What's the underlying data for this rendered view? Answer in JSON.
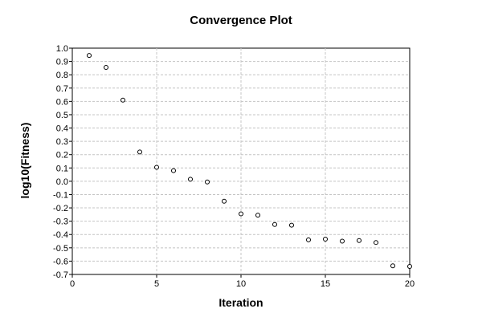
{
  "chart_data": {
    "type": "scatter",
    "title": "Convergence Plot",
    "xlabel": "Iteration",
    "ylabel": "log10(Fitness)",
    "xlim": [
      0,
      20
    ],
    "ylim": [
      -0.7,
      1.0
    ],
    "x_ticks": [
      0,
      5,
      10,
      15,
      20
    ],
    "y_ticks": [
      1.0,
      0.9,
      0.8,
      0.7,
      0.6,
      0.5,
      0.4,
      0.3,
      0.2,
      0.1,
      0.0,
      -0.1,
      -0.2,
      -0.3,
      -0.4,
      -0.5,
      -0.6,
      -0.7
    ],
    "x_tick_labels": [
      "0",
      "5",
      "10",
      "15",
      "20"
    ],
    "y_tick_labels": [
      "1.0",
      "0.9",
      "0.8",
      "0.7",
      "0.6",
      "0.5",
      "0.4",
      "0.3",
      "0.2",
      "0.1",
      "0.0",
      "-0.1",
      "-0.2",
      "-0.3",
      "-0.4",
      "-0.5",
      "-0.6",
      "-0.7"
    ],
    "grid": true,
    "marker": "open-circle",
    "series": [
      {
        "x": [
          1,
          2,
          3,
          4,
          5,
          6,
          7,
          8,
          9,
          10,
          11,
          12,
          13,
          14,
          15,
          16,
          17,
          18,
          19,
          20
        ],
        "y": [
          0.945,
          0.855,
          0.61,
          0.22,
          0.105,
          0.08,
          0.015,
          -0.005,
          -0.15,
          -0.245,
          -0.255,
          -0.325,
          -0.33,
          -0.44,
          -0.435,
          -0.45,
          -0.445,
          -0.46,
          -0.635,
          -0.64
        ]
      }
    ]
  }
}
